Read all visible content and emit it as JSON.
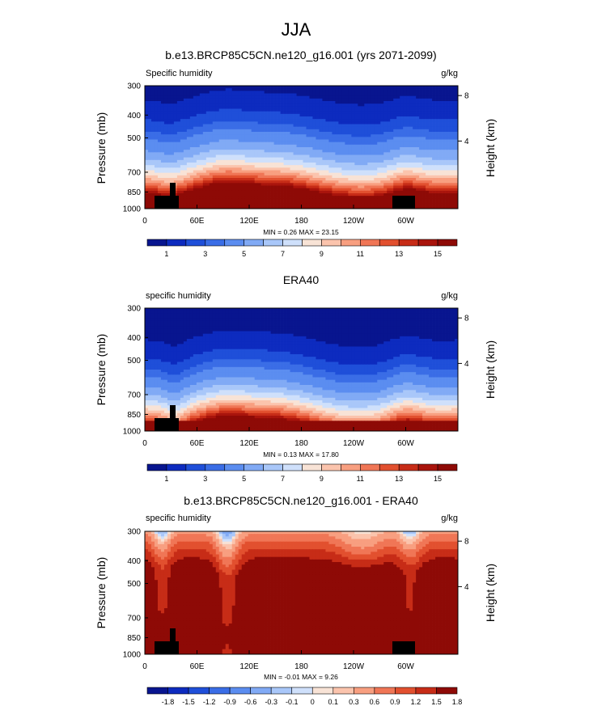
{
  "figure": {
    "title": "JJA"
  },
  "colors": {
    "mean_fill": [
      "#08158f",
      "#0d2bbf",
      "#1f4fd9",
      "#3a6de6",
      "#5b8df0",
      "#81aaf5",
      "#a9c7f9",
      "#cfe0fb",
      "#f8e3d6",
      "#fbc4ad",
      "#f89f80",
      "#f07656",
      "#e2502f",
      "#c72c17",
      "#a9140c",
      "#8e0a06"
    ],
    "diff_fill": [
      "#08158f",
      "#0d2bbf",
      "#1f4fd9",
      "#3a6de6",
      "#5b8df0",
      "#81aaf5",
      "#a9c7f9",
      "#cfe0fb",
      "#f8e3d6",
      "#fbc4ad",
      "#f89f80",
      "#f07656",
      "#e2502f",
      "#c72c17",
      "#8e0a06"
    ],
    "terrain": "#000000"
  },
  "chart_data": [
    {
      "type": "heatmap",
      "title": "b.e13.BRCP85C5CN.ne120_g16.001 (yrs 2071-2099)",
      "left_label": "Specific humidity",
      "units": "g/kg",
      "ylabel": "Pressure (mb)",
      "ylabel_right": "Height (km)",
      "yticks": [
        "300",
        "400",
        "500",
        "700",
        "850",
        "1000"
      ],
      "yticks_right": [
        "8",
        "4"
      ],
      "xticks": [
        "0",
        "60E",
        "120E",
        "180",
        "120W",
        "60W"
      ],
      "stats": "MIN =  0.26  MAX =  23.15",
      "colorbar_labels": [
        "1",
        "3",
        "5",
        "7",
        "9",
        "11",
        "13",
        "15"
      ],
      "levels": [
        0.5,
        1,
        1.5,
        2,
        3,
        4,
        5,
        6,
        7,
        8,
        9,
        10,
        11,
        12,
        13,
        14,
        15
      ],
      "surface_max": 20,
      "surface_field": "model"
    },
    {
      "type": "heatmap",
      "title": "ERA40",
      "left_label": "specific humidity",
      "units": "g/kg",
      "ylabel": "Pressure (mb)",
      "ylabel_right": "Height (km)",
      "yticks": [
        "300",
        "400",
        "500",
        "700",
        "850",
        "1000"
      ],
      "yticks_right": [
        "8",
        "4"
      ],
      "xticks": [
        "0",
        "60E",
        "120E",
        "180",
        "120W",
        "60W"
      ],
      "stats": "MIN =  0.13  MAX =  17.80",
      "colorbar_labels": [
        "1",
        "3",
        "5",
        "7",
        "9",
        "11",
        "13",
        "15"
      ],
      "levels": [
        0.5,
        1,
        1.5,
        2,
        3,
        4,
        5,
        6,
        7,
        8,
        9,
        10,
        11,
        12,
        13,
        14,
        15
      ],
      "surface_max": 16,
      "surface_field": "obs"
    },
    {
      "type": "heatmap",
      "title": "b.e13.BRCP85C5CN.ne120_g16.001 - ERA40",
      "left_label": "specific humidity",
      "units": "g/kg",
      "ylabel": "Pressure (mb)",
      "ylabel_right": "Height (km)",
      "yticks": [
        "300",
        "400",
        "500",
        "700",
        "850",
        "1000"
      ],
      "yticks_right": [
        "8",
        "4"
      ],
      "xticks": [
        "0",
        "60E",
        "120E",
        "180",
        "120W",
        "60W"
      ],
      "stats": "MIN =  -0.01  MAX =  9.26",
      "colorbar_labels": [
        "-1.8",
        "-1.5",
        "-1.2",
        "-0.9",
        "-0.6",
        "-0.3",
        "-0.1",
        "0",
        "0.1",
        "0.3",
        "0.6",
        "0.9",
        "1.2",
        "1.5",
        "1.8"
      ],
      "levels": [
        -1.8,
        -1.5,
        -1.2,
        -0.9,
        -0.6,
        -0.3,
        -0.1,
        0,
        0.1,
        0.3,
        0.6,
        0.9,
        1.2,
        1.5,
        1.8
      ],
      "surface_max": 9.26,
      "surface_field": "diff"
    }
  ]
}
